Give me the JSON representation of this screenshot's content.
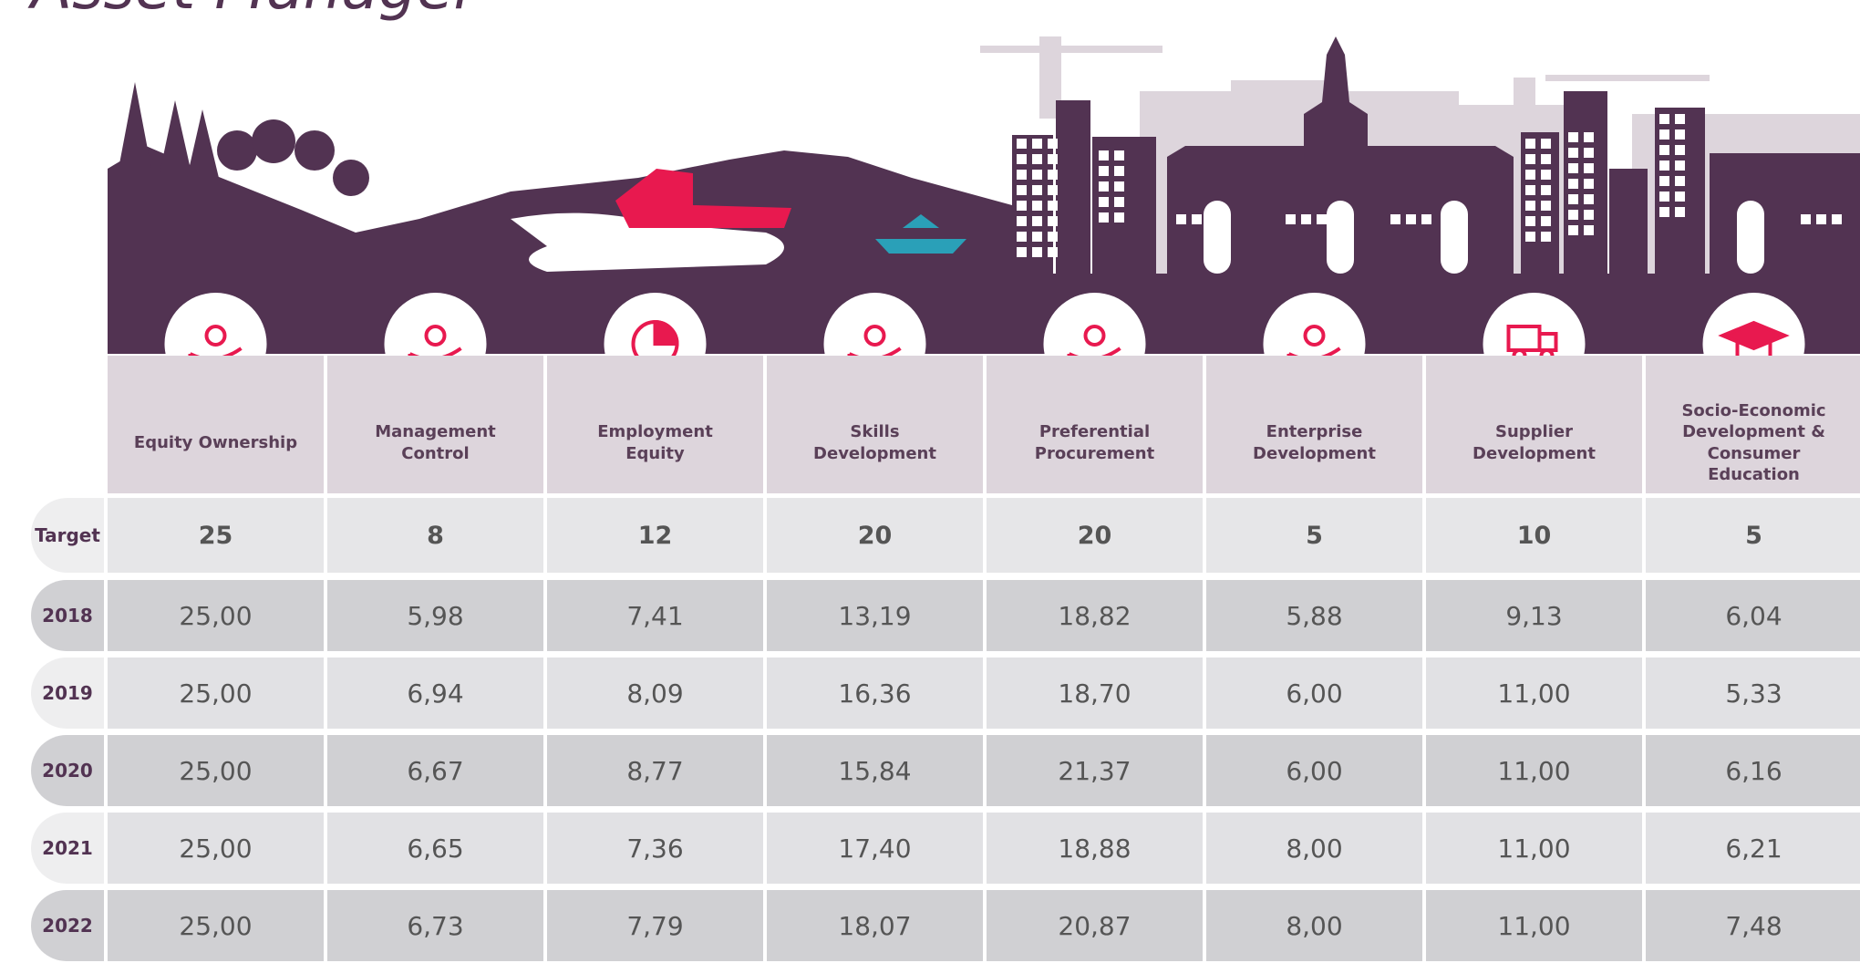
{
  "header": {
    "title": "Asset Manager"
  },
  "table": {
    "columns": [
      "Equity Ownership",
      "Management Control",
      "Employment Equity",
      "Skills Development",
      "Preferential Procurement",
      "Enterprise Development",
      "Supplier Development",
      "Socio-Economic Development & Consumer Education"
    ],
    "rows": [
      {
        "label": "Target",
        "cells": [
          "25",
          "8",
          "12",
          "20",
          "20",
          "5",
          "10",
          "5"
        ]
      },
      {
        "label": "2018",
        "cells": [
          "25,00",
          "5,98",
          "7,41",
          "13,19",
          "18,82",
          "5,88",
          "9,13",
          "6,04"
        ]
      },
      {
        "label": "2019",
        "cells": [
          "25,00",
          "6,94",
          "8,09",
          "16,36",
          "18,70",
          "6,00",
          "11,00",
          "5,33"
        ]
      },
      {
        "label": "2020",
        "cells": [
          "25,00",
          "6,67",
          "8,77",
          "15,84",
          "21,37",
          "6,00",
          "11,00",
          "6,16"
        ]
      },
      {
        "label": "2021",
        "cells": [
          "25,00",
          "6,65",
          "7,36",
          "17,40",
          "18,88",
          "8,00",
          "11,00",
          "6,21"
        ]
      },
      {
        "label": "2022",
        "cells": [
          "25,00",
          "6,73",
          "7,79",
          "18,07",
          "20,87",
          "8,00",
          "11,00",
          "7,48"
        ]
      }
    ]
  }
}
